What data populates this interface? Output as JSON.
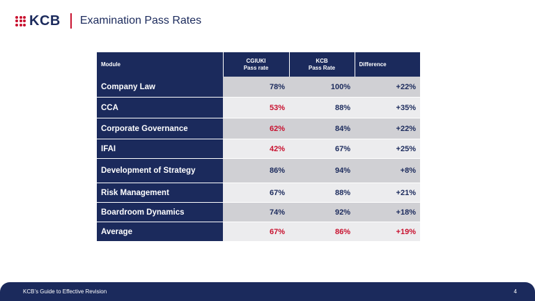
{
  "header": {
    "logo_text": "KCB",
    "title": "Examination Pass Rates"
  },
  "table": {
    "headers": {
      "module": "Module",
      "cgiuki_line1": "CGIUKI",
      "cgiuki_line2": "Pass rate",
      "kcb_line1": "KCB",
      "kcb_line2": "Pass Rate",
      "difference": "Difference"
    },
    "rows": [
      {
        "module": "Company Law",
        "cgiuki": "78%",
        "kcb": "100%",
        "difference": "+22%"
      },
      {
        "module": "CCA",
        "cgiuki": "53%",
        "kcb": "88%",
        "difference": "+35%"
      },
      {
        "module": "Corporate Governance",
        "cgiuki": "62%",
        "kcb": "84%",
        "difference": "+22%"
      },
      {
        "module": "IFAI",
        "cgiuki": "42%",
        "kcb": "67%",
        "difference": "+25%"
      },
      {
        "module": "Development of Strategy",
        "cgiuki": "86%",
        "kcb": "94%",
        "difference": "+8%"
      },
      {
        "module": "Risk Management",
        "cgiuki": "67%",
        "kcb": "88%",
        "difference": "+21%"
      },
      {
        "module": "Boardroom Dynamics",
        "cgiuki": "74%",
        "kcb": "92%",
        "difference": "+18%"
      },
      {
        "module": "Average",
        "cgiuki": "67%",
        "kcb": "86%",
        "difference": "+19%"
      }
    ]
  },
  "footer": {
    "text": "KCB’s Guide to Effective Revision",
    "page_number": "4"
  },
  "colors": {
    "navy": "#1b2a5c",
    "red": "#c8102e",
    "row_dark": "#d0d0d4",
    "row_light": "#ececee"
  }
}
